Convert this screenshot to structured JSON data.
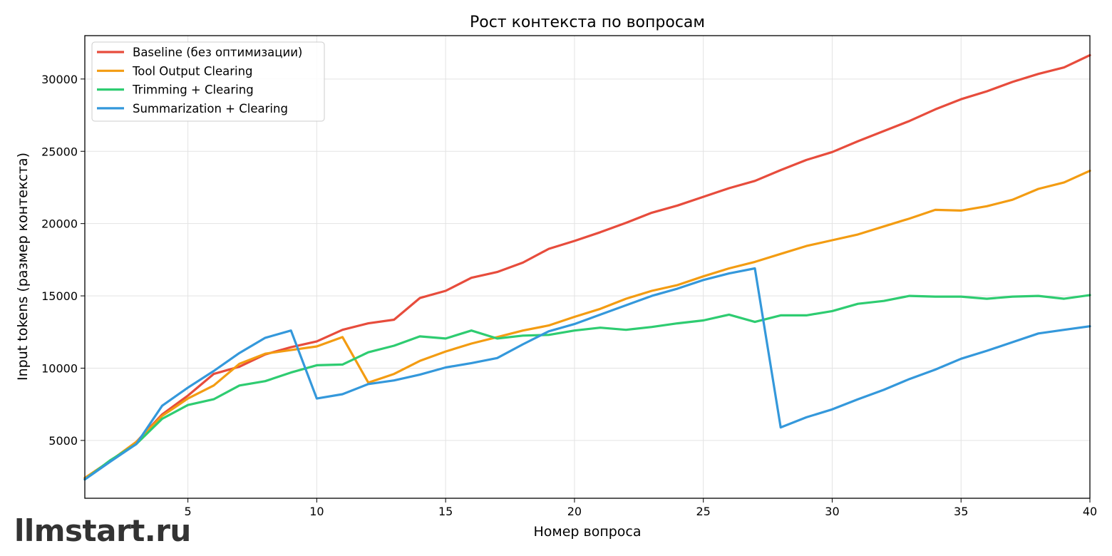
{
  "chart_data": {
    "type": "line",
    "title": "Рост контекста по вопросам",
    "xlabel": "Номер вопроса",
    "ylabel": "Input tokens (размер контекста)",
    "xlim": [
      1,
      40
    ],
    "ylim": [
      1000,
      33000
    ],
    "xticks": [
      5,
      10,
      15,
      20,
      25,
      30,
      35,
      40
    ],
    "yticks": [
      5000,
      10000,
      15000,
      20000,
      25000,
      30000
    ],
    "grid": true,
    "legend_position": "top-left",
    "x": [
      1,
      2,
      3,
      4,
      5,
      6,
      7,
      8,
      9,
      10,
      11,
      12,
      13,
      14,
      15,
      16,
      17,
      18,
      19,
      20,
      21,
      22,
      23,
      24,
      25,
      26,
      27,
      28,
      29,
      30,
      31,
      32,
      33,
      34,
      35,
      36,
      37,
      38,
      39,
      40
    ],
    "series": [
      {
        "name": "Baseline (без оптимизации)",
        "color": "#e74c3c",
        "values": [
          2400,
          3600,
          4900,
          6800,
          8100,
          9600,
          10100,
          10950,
          11450,
          11850,
          12650,
          13100,
          13350,
          14850,
          15350,
          16250,
          16650,
          17300,
          18250,
          18800,
          19400,
          20050,
          20750,
          21250,
          21850,
          22450,
          22950,
          23700,
          24400,
          24950,
          25700,
          26400,
          27100,
          27900,
          28600,
          29150,
          29800,
          30350,
          30800,
          31650
        ]
      },
      {
        "name": "Tool Output Clearing",
        "color": "#f39c12",
        "values": [
          2400,
          3600,
          4900,
          6700,
          7900,
          8800,
          10300,
          11000,
          11250,
          11500,
          12150,
          9000,
          9600,
          10500,
          11150,
          11700,
          12150,
          12600,
          12950,
          13550,
          14100,
          14800,
          15350,
          15750,
          16350,
          16900,
          17350,
          17900,
          18450,
          18850,
          19250,
          19800,
          20350,
          20950,
          20900,
          21200,
          21650,
          22400,
          22850,
          23650
        ]
      },
      {
        "name": "Trimming + Clearing",
        "color": "#2ecc71",
        "values": [
          2300,
          3650,
          4750,
          6500,
          7450,
          7850,
          8800,
          9100,
          9700,
          10200,
          10250,
          11100,
          11550,
          12200,
          12050,
          12600,
          12050,
          12250,
          12300,
          12600,
          12800,
          12650,
          12850,
          13100,
          13300,
          13700,
          13200,
          13650,
          13650,
          13950,
          14450,
          14650,
          15000,
          14950,
          14950,
          14800,
          14950,
          15000,
          14800,
          15050
        ]
      },
      {
        "name": "Summarization + Clearing",
        "color": "#3498db",
        "values": [
          2300,
          3550,
          4750,
          7400,
          8650,
          9800,
          11050,
          12100,
          12600,
          7900,
          8200,
          8900,
          9150,
          9550,
          10050,
          10350,
          10700,
          11650,
          12550,
          13050,
          13700,
          14350,
          15000,
          15500,
          16100,
          16550,
          16900,
          5900,
          6600,
          7150,
          7850,
          8500,
          9250,
          9900,
          10650,
          11200,
          11800,
          12400,
          12650,
          12900
        ]
      }
    ]
  },
  "watermark": "llmstart.ru"
}
